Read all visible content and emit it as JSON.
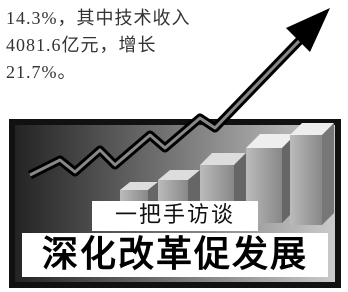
{
  "article": {
    "lines": [
      "14.3%，其中技术收入",
      "4081.6亿元，增长",
      "21.7%。"
    ]
  },
  "banner": {
    "kicker": "一把手访谈",
    "headline": "深化改革促发展"
  }
}
